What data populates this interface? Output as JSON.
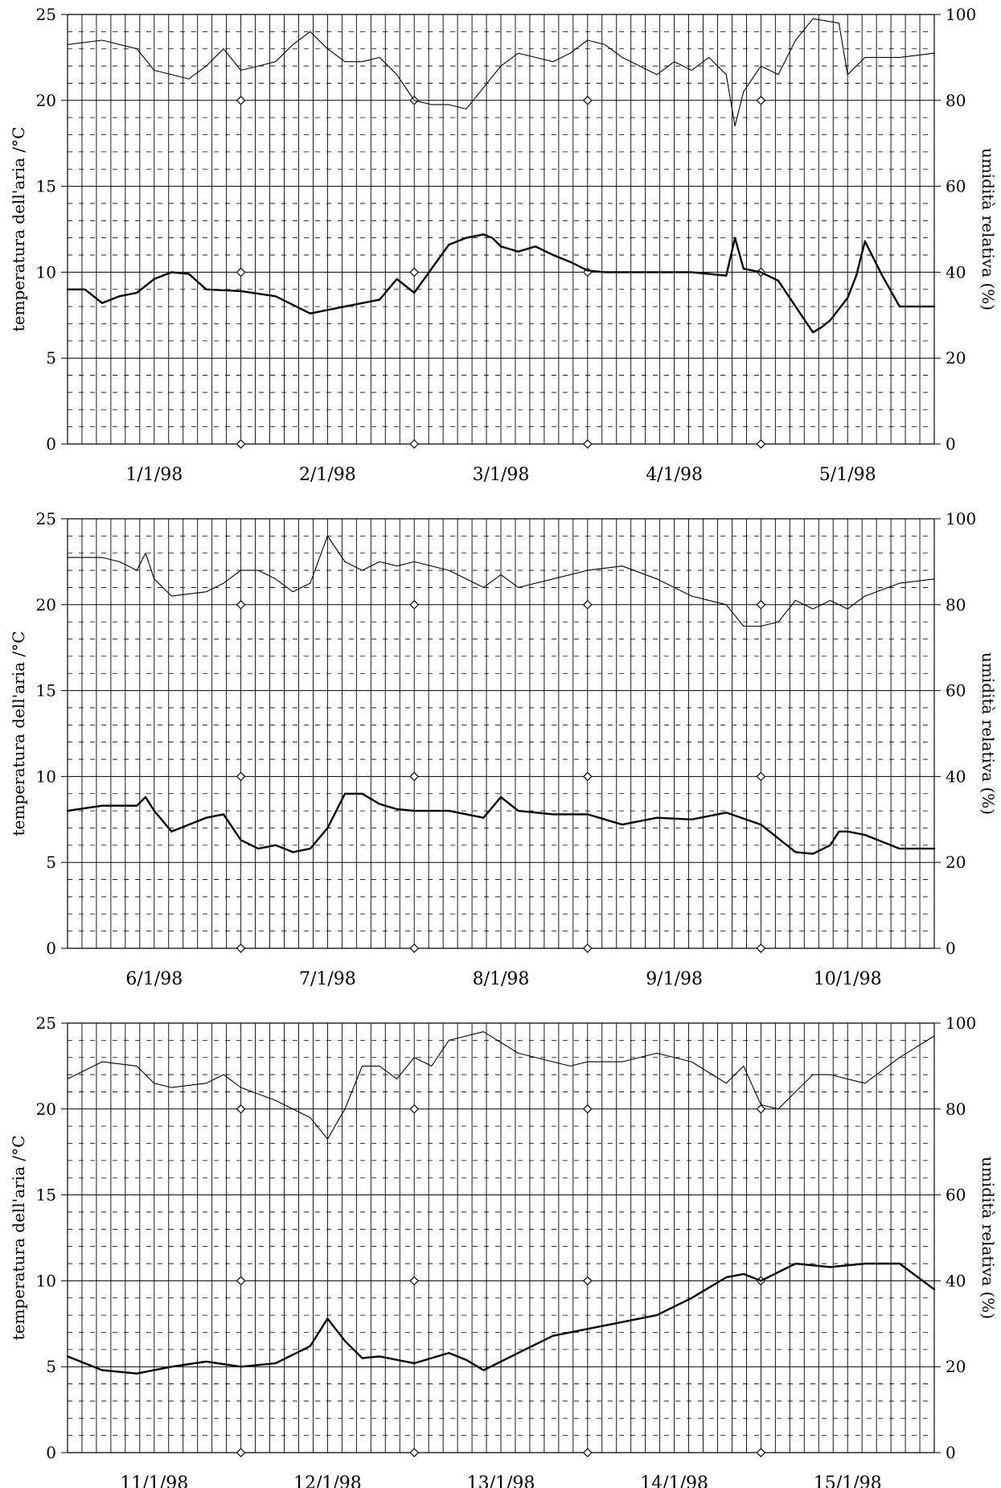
{
  "chart_data": [
    {
      "type": "line",
      "title": "",
      "ylabel": "temperatura dell'aria  /°C",
      "y2label": "umidità relativa (%)",
      "ylim": [
        0,
        25
      ],
      "y2lim": [
        0,
        100
      ],
      "yticks": [
        "0",
        "5",
        "10",
        "15",
        "20",
        "25"
      ],
      "y2ticks": [
        "0",
        "20",
        "40",
        "60",
        "80",
        "100"
      ],
      "categories": [
        "1/1/98",
        "2/1/98",
        "3/1/98",
        "4/1/98",
        "5/1/98"
      ],
      "x_unit": "days",
      "xlim": [
        0,
        5
      ],
      "grid": true,
      "series": [
        {
          "axis": "left",
          "line": "thick",
          "x": [
            0,
            0.1,
            0.2,
            0.3,
            0.4,
            0.5,
            0.6,
            0.7,
            0.8,
            1.0,
            1.2,
            1.4,
            1.6,
            1.8,
            1.9,
            2.0,
            2.1,
            2.2,
            2.25,
            2.3,
            2.4,
            2.45,
            2.5,
            2.6,
            2.7,
            2.8,
            2.9,
            3.0,
            3.1,
            3.2,
            3.4,
            3.6,
            3.8,
            3.85,
            3.9,
            4.0,
            4.1,
            4.2,
            4.3,
            4.35,
            4.4,
            4.5,
            4.55,
            4.6,
            4.7,
            4.8,
            5.0
          ],
          "values": [
            9.0,
            9.0,
            8.2,
            8.6,
            8.8,
            9.6,
            10.0,
            9.9,
            9.0,
            8.9,
            8.6,
            7.6,
            8.0,
            8.4,
            9.6,
            8.8,
            10.2,
            11.6,
            11.8,
            12.0,
            12.2,
            12.0,
            11.5,
            11.2,
            11.5,
            11.0,
            10.6,
            10.1,
            10.0,
            10.0,
            10.0,
            10.0,
            9.8,
            12.0,
            10.2,
            10.0,
            9.5,
            8.0,
            6.5,
            6.8,
            7.2,
            8.5,
            9.8,
            11.8,
            9.8,
            8.0,
            8.0
          ]
        },
        {
          "axis": "right",
          "line": "thin",
          "x": [
            0,
            0.2,
            0.4,
            0.5,
            0.7,
            0.8,
            0.9,
            1.0,
            1.1,
            1.2,
            1.3,
            1.4,
            1.5,
            1.6,
            1.7,
            1.8,
            1.9,
            2.0,
            2.1,
            2.2,
            2.3,
            2.4,
            2.5,
            2.6,
            2.7,
            2.8,
            2.9,
            3.0,
            3.1,
            3.2,
            3.4,
            3.5,
            3.6,
            3.7,
            3.8,
            3.85,
            3.9,
            4.0,
            4.1,
            4.2,
            4.3,
            4.45,
            4.5,
            4.6,
            4.8,
            5.0
          ],
          "values": [
            93,
            94,
            92,
            87,
            85,
            88,
            92,
            87,
            88,
            89,
            93,
            96,
            92,
            89,
            89,
            90,
            86,
            80,
            79,
            79,
            78,
            83,
            88,
            91,
            90,
            89,
            91,
            94,
            93,
            90,
            86,
            89,
            87,
            90,
            86,
            74,
            82,
            88,
            86,
            94,
            99,
            98,
            86,
            90,
            90,
            91
          ]
        }
      ]
    },
    {
      "type": "line",
      "title": "",
      "ylabel": "temperatura dell'aria  /°C",
      "y2label": "umidità relativa (%)",
      "ylim": [
        0,
        25
      ],
      "y2lim": [
        0,
        100
      ],
      "yticks": [
        "0",
        "5",
        "10",
        "15",
        "20",
        "25"
      ],
      "y2ticks": [
        "0",
        "20",
        "40",
        "60",
        "80",
        "100"
      ],
      "categories": [
        "6/1/98",
        "7/1/98",
        "8/1/98",
        "9/1/98",
        "10/1/98"
      ],
      "x_unit": "days",
      "xlim": [
        0,
        5
      ],
      "grid": true,
      "series": [
        {
          "axis": "left",
          "line": "thick",
          "x": [
            0,
            0.2,
            0.4,
            0.45,
            0.5,
            0.6,
            0.8,
            0.9,
            1.0,
            1.1,
            1.2,
            1.3,
            1.4,
            1.5,
            1.6,
            1.7,
            1.8,
            1.9,
            2.0,
            2.2,
            2.4,
            2.5,
            2.6,
            2.8,
            3.0,
            3.2,
            3.4,
            3.6,
            3.8,
            4.0,
            4.2,
            4.3,
            4.4,
            4.45,
            4.5,
            4.6,
            4.8,
            5.0
          ],
          "values": [
            8.0,
            8.3,
            8.3,
            8.8,
            8.0,
            6.8,
            7.6,
            7.8,
            6.3,
            5.8,
            6.0,
            5.6,
            5.8,
            7.0,
            9.0,
            9.0,
            8.4,
            8.1,
            8.0,
            8.0,
            7.6,
            8.8,
            8.0,
            7.8,
            7.8,
            7.2,
            7.6,
            7.5,
            7.9,
            7.2,
            5.6,
            5.5,
            6.0,
            6.8,
            6.8,
            6.6,
            5.8,
            5.8
          ]
        },
        {
          "axis": "right",
          "line": "thin",
          "x": [
            0,
            0.2,
            0.3,
            0.4,
            0.45,
            0.5,
            0.6,
            0.8,
            0.9,
            1.0,
            1.1,
            1.2,
            1.3,
            1.4,
            1.5,
            1.6,
            1.7,
            1.8,
            1.9,
            2.0,
            2.2,
            2.4,
            2.5,
            2.6,
            2.8,
            3.0,
            3.2,
            3.4,
            3.6,
            3.8,
            3.9,
            4.0,
            4.1,
            4.2,
            4.3,
            4.4,
            4.5,
            4.6,
            4.8,
            5.0
          ],
          "values": [
            91,
            91,
            90,
            88,
            92,
            86,
            82,
            83,
            85,
            88,
            88,
            86,
            83,
            85,
            96,
            90,
            88,
            90,
            89,
            90,
            88,
            84,
            87,
            84,
            86,
            88,
            89,
            86,
            82,
            80,
            75,
            75,
            76,
            81,
            79,
            81,
            79,
            82,
            85,
            86
          ]
        }
      ]
    },
    {
      "type": "line",
      "title": "",
      "ylabel": "temperatura dell'aria  /°C",
      "y2label": "umidità relativa (%)",
      "ylim": [
        0,
        25
      ],
      "y2lim": [
        0,
        100
      ],
      "yticks": [
        "0",
        "5",
        "10",
        "15",
        "20",
        "25"
      ],
      "y2ticks": [
        "0",
        "20",
        "40",
        "60",
        "80",
        "100"
      ],
      "categories": [
        "11/1/98",
        "12/1/98",
        "13/1/98",
        "14/1/98",
        "15/1/98"
      ],
      "x_unit": "days",
      "xlim": [
        0,
        5
      ],
      "grid": true,
      "series": [
        {
          "axis": "left",
          "line": "thick",
          "x": [
            0,
            0.2,
            0.4,
            0.6,
            0.8,
            1.0,
            1.2,
            1.4,
            1.5,
            1.6,
            1.7,
            1.8,
            2.0,
            2.2,
            2.3,
            2.4,
            2.6,
            2.8,
            3.0,
            3.2,
            3.4,
            3.6,
            3.8,
            3.9,
            4.0,
            4.2,
            4.4,
            4.6,
            4.8,
            5.0
          ],
          "values": [
            5.6,
            4.8,
            4.6,
            5.0,
            5.3,
            5.0,
            5.2,
            6.2,
            7.8,
            6.5,
            5.5,
            5.6,
            5.2,
            5.8,
            5.4,
            4.8,
            5.8,
            6.8,
            7.2,
            7.6,
            8.0,
            9.0,
            10.2,
            10.4,
            10.0,
            11.0,
            10.8,
            11.0,
            11.0,
            9.5
          ]
        },
        {
          "axis": "right",
          "line": "thin",
          "x": [
            0,
            0.2,
            0.4,
            0.5,
            0.6,
            0.8,
            0.9,
            1.0,
            1.2,
            1.4,
            1.5,
            1.6,
            1.7,
            1.8,
            1.9,
            2.0,
            2.1,
            2.2,
            2.4,
            2.6,
            2.8,
            2.9,
            3.0,
            3.2,
            3.4,
            3.6,
            3.8,
            3.9,
            4.0,
            4.1,
            4.2,
            4.3,
            4.4,
            4.6,
            4.8,
            5.0
          ],
          "values": [
            87,
            91,
            90,
            86,
            85,
            86,
            88,
            85,
            82,
            78,
            73,
            80,
            90,
            90,
            87,
            92,
            90,
            96,
            98,
            93,
            91,
            90,
            91,
            91,
            93,
            91,
            86,
            90,
            81,
            80,
            84,
            88,
            88,
            86,
            92,
            97
          ]
        }
      ]
    }
  ]
}
